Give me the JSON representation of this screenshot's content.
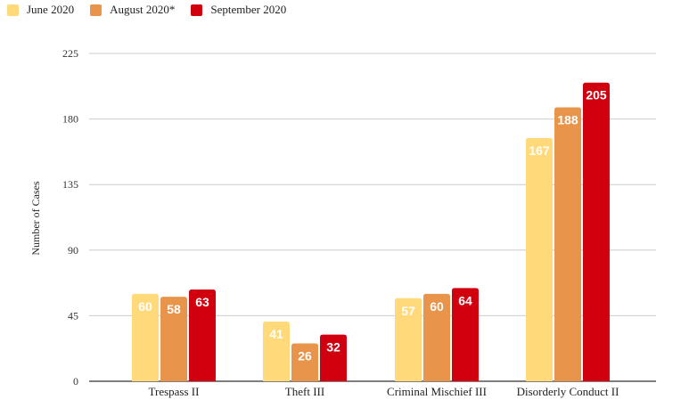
{
  "chart_data": {
    "type": "bar",
    "categories": [
      "Trespass II",
      "Theft III",
      "Criminal Mischief III",
      "Disorderly Conduct II"
    ],
    "series": [
      {
        "name": "June 2020",
        "values": [
          60,
          41,
          57,
          167
        ],
        "color": "#FFD97A"
      },
      {
        "name": "August 2020*",
        "values": [
          58,
          26,
          60,
          188
        ],
        "color": "#E8944A"
      },
      {
        "name": "September 2020",
        "values": [
          63,
          32,
          64,
          205
        ],
        "color": "#D1000F"
      }
    ],
    "title": "",
    "xlabel": "",
    "ylabel": "Number of Cases",
    "ylim": [
      0,
      225
    ],
    "yticks": [
      0,
      45,
      90,
      135,
      180,
      225
    ],
    "grid": true,
    "legend_position": "top-left"
  }
}
